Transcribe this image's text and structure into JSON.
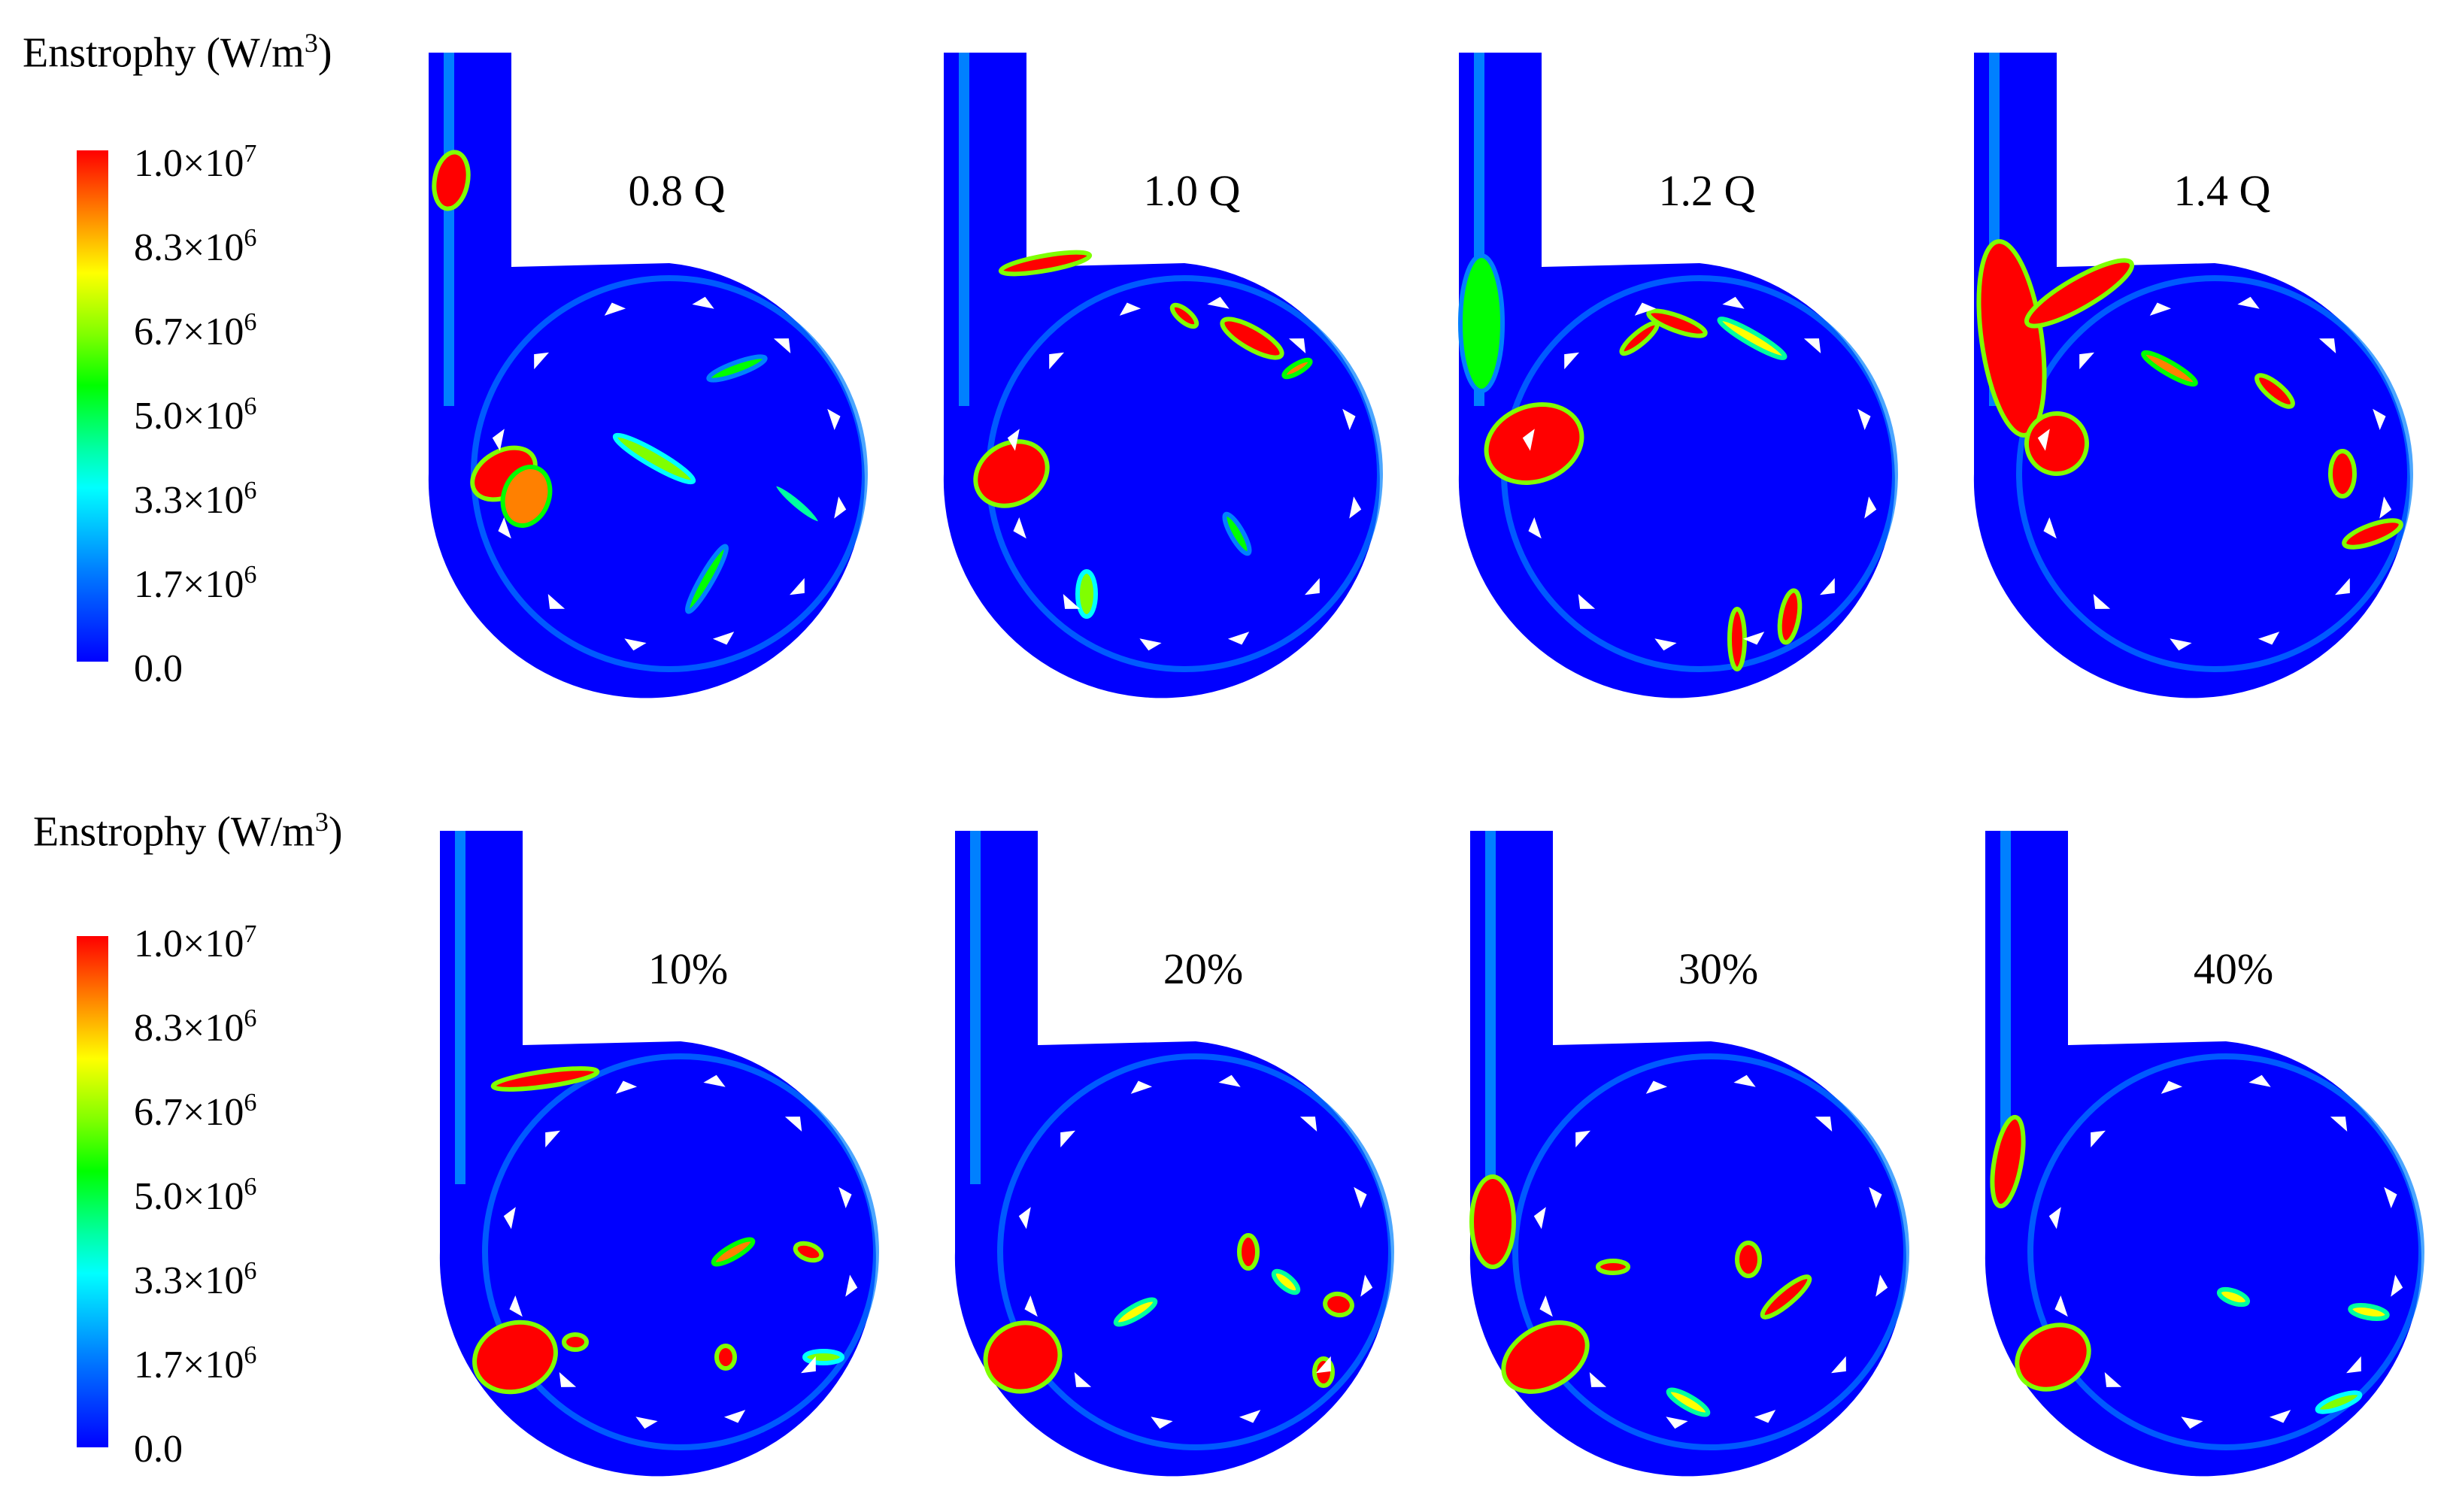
{
  "colorbars": [
    {
      "title_text": "Enstrophy (W/m",
      "title_sup": "3",
      "title_close": ")",
      "ticks": [
        {
          "mant": "1.0×10",
          "exp": "7"
        },
        {
          "mant": "8.3×10",
          "exp": "6"
        },
        {
          "mant": "6.7×10",
          "exp": "6"
        },
        {
          "mant": "5.0×10",
          "exp": "6"
        },
        {
          "mant": "3.3×10",
          "exp": "6"
        },
        {
          "mant": "1.7×10",
          "exp": "6"
        },
        {
          "mant": "0.0",
          "exp": ""
        }
      ]
    },
    {
      "title_text": "Enstrophy (W/m",
      "title_sup": "3",
      "title_close": ")",
      "ticks": [
        {
          "mant": "1.0×10",
          "exp": "7"
        },
        {
          "mant": "8.3×10",
          "exp": "6"
        },
        {
          "mant": "6.7×10",
          "exp": "6"
        },
        {
          "mant": "5.0×10",
          "exp": "6"
        },
        {
          "mant": "3.3×10",
          "exp": "6"
        },
        {
          "mant": "1.7×10",
          "exp": "6"
        },
        {
          "mant": "0.0",
          "exp": ""
        }
      ]
    }
  ],
  "colormap": [
    "#0000ff",
    "#0080ff",
    "#00ffff",
    "#00ffa0",
    "#00ff00",
    "#80ff00",
    "#ffff00",
    "#ff8000",
    "#ff0000"
  ],
  "rows": [
    {
      "panels": [
        {
          "label": "0.8 Q"
        },
        {
          "label": "1.0 Q"
        },
        {
          "label": "1.2 Q"
        },
        {
          "label": "1.4 Q"
        }
      ]
    },
    {
      "panels": [
        {
          "label": "10%"
        },
        {
          "label": "20%"
        },
        {
          "label": "30%"
        },
        {
          "label": "40%"
        }
      ]
    }
  ]
}
